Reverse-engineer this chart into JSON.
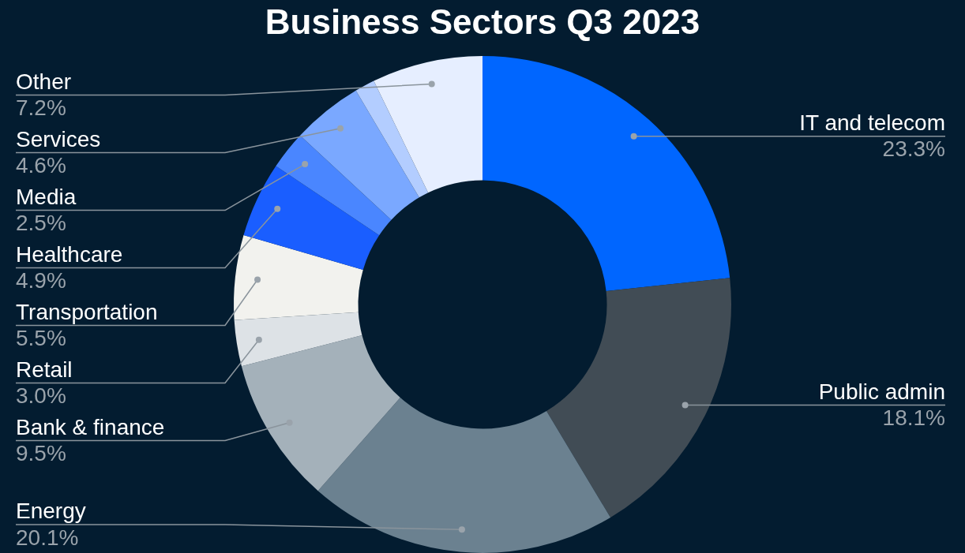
{
  "chart_data": {
    "type": "donut",
    "title": "Business Sectors Q3 2023",
    "categories": [
      "IT and telecom",
      "Public admin",
      "Energy",
      "Bank & finance",
      "Retail",
      "Transportation",
      "Healthcare",
      "Media",
      "Services",
      null,
      "Other"
    ],
    "values": [
      23.3,
      18.1,
      20.1,
      9.5,
      3.0,
      5.5,
      4.9,
      2.5,
      4.6,
      1.3,
      7.2
    ],
    "value_labels": [
      "23.3%",
      "18.1%",
      "20.1%",
      "9.5%",
      "3.0%",
      "5.5%",
      "4.9%",
      "2.5%",
      "4.6%",
      null,
      "7.2%"
    ],
    "colors": [
      "#0066ff",
      "#414c55",
      "#6b8190",
      "#a4b1ba",
      "#dde2e6",
      "#f2f2ee",
      "#1a5eff",
      "#4a86ff",
      "#7aa8ff",
      "#b3cdff",
      "#e6eeff"
    ],
    "legend": false
  }
}
